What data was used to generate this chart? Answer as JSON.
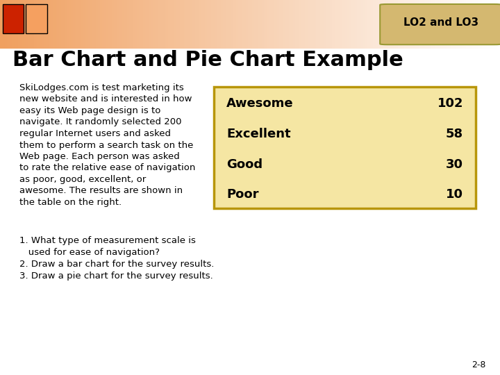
{
  "title": "Bar Chart and Pie Chart Example",
  "lo_label": "LO2 and LO3",
  "bg_color": "#ffffff",
  "lo_box_color": "#d4b870",
  "lo_text_color": "#000000",
  "title_color": "#000000",
  "title_fontsize": 22,
  "body_fontsize": 9.5,
  "table_bg_color": "#f5e6a3",
  "table_border_color": "#b8960b",
  "paragraph_text": "SkiLodges.com is test marketing its\nnew website and is interested in how\neasy its Web page design is to\nnavigate. It randomly selected 200\nregular Internet users and asked\nthem to perform a search task on the\nWeb page. Each person was asked\nto rate the relative ease of navigation\nas poor, good, excellent, or\nawesome. The results are shown in\nthe table on the right.",
  "table_rows": [
    [
      "Awesome",
      "102"
    ],
    [
      "Excellent",
      "58"
    ],
    [
      "Good",
      "30"
    ],
    [
      "Poor",
      "10"
    ]
  ],
  "questions": [
    "1. What type of measurement scale is",
    "   used for ease of navigation?",
    "2. Draw a bar chart for the survey results.",
    "3. Draw a pie chart for the survey results."
  ],
  "page_number": "2-8",
  "sq1_color": "#cc2200",
  "sq2_color": "#f5a060",
  "gradient_left": "#f0a060",
  "gradient_right": "#ffffff"
}
